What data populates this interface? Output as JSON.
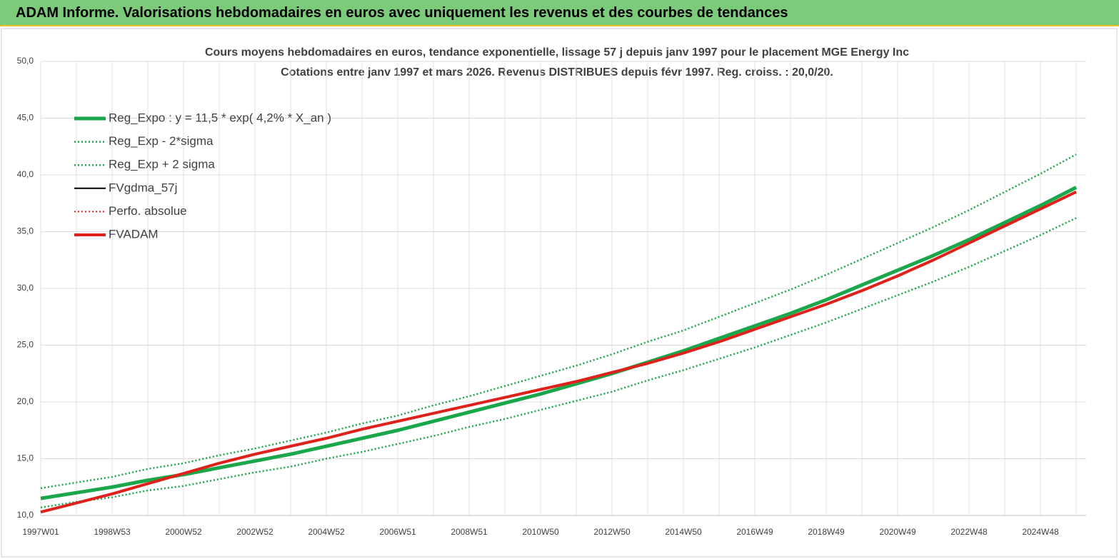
{
  "banner": "ADAM Informe. Valorisations hebdomadaires en euros avec uniquement les revenus et des courbes de tendances",
  "chart_data": {
    "type": "line",
    "title": "Cours moyens hebdomadaires en euros, tendance exponentielle, lissage 57 j depuis janv 1997 pour le placement MGE Energy Inc",
    "subtitle": "Cotations entre janv 1997 et mars 2026. Revenus DISTRIBUES depuis févr 1997. Reg. croiss. : 20,0/20.",
    "categories": [
      "1997W01",
      null,
      "1998W53",
      null,
      "2000W52",
      null,
      "2002W52",
      null,
      "2004W52",
      null,
      "2006W51",
      null,
      "2008W51",
      null,
      "2010W50",
      null,
      "2012W50",
      null,
      "2014W50",
      null,
      "2016W49",
      null,
      "2018W49",
      null,
      "2020W49",
      null,
      "2022W48",
      null,
      "2024W48",
      null
    ],
    "ylim": [
      10,
      50
    ],
    "yticks": [
      {
        "value": 10,
        "label": "10,0"
      },
      {
        "value": 15,
        "label": "15,0"
      },
      {
        "value": 20,
        "label": "20,0"
      },
      {
        "value": 25,
        "label": "25,0"
      },
      {
        "value": 30,
        "label": "30,0"
      },
      {
        "value": 35,
        "label": "35,0"
      },
      {
        "value": 40,
        "label": "40,0"
      },
      {
        "value": 45,
        "label": "45,0"
      },
      {
        "value": 50,
        "label": "50,0"
      }
    ],
    "grid": true,
    "legend": "top-left",
    "series": [
      {
        "name": "Reg_Expo : y = 11,5 * exp( 4,2% *  X_an )",
        "color": "#1aa64a",
        "width": 5,
        "dotted": false,
        "values": [
          11.5,
          12.0,
          12.5,
          13.1,
          13.6,
          14.2,
          14.8,
          15.4,
          16.1,
          16.8,
          17.5,
          18.3,
          19.1,
          19.9,
          20.7,
          21.6,
          22.5,
          23.5,
          24.5,
          25.6,
          26.7,
          27.8,
          29.0,
          30.3,
          31.6,
          32.9,
          34.3,
          35.8,
          37.3,
          38.9
        ]
      },
      {
        "name": "Reg_Exp - 2*sigma",
        "color": "#1aa64a",
        "width": 2.5,
        "dotted": true,
        "values": [
          10.7,
          11.2,
          11.6,
          12.2,
          12.6,
          13.2,
          13.8,
          14.3,
          15.0,
          15.6,
          16.3,
          17.0,
          17.8,
          18.5,
          19.3,
          20.1,
          20.9,
          21.9,
          22.8,
          23.8,
          24.8,
          25.9,
          27.0,
          28.2,
          29.4,
          30.6,
          31.9,
          33.3,
          34.7,
          36.2
        ]
      },
      {
        "name": "Reg_Exp + 2 sigma",
        "color": "#1aa64a",
        "width": 2.5,
        "dotted": true,
        "values": [
          12.4,
          12.9,
          13.4,
          14.1,
          14.6,
          15.3,
          15.9,
          16.6,
          17.3,
          18.1,
          18.8,
          19.7,
          20.5,
          21.4,
          22.3,
          23.2,
          24.2,
          25.3,
          26.3,
          27.5,
          28.7,
          29.9,
          31.2,
          32.6,
          34.0,
          35.4,
          36.9,
          38.5,
          40.1,
          41.8
        ]
      },
      {
        "name": "FVgdma_57j",
        "color": "#000000",
        "width": 2,
        "dotted": false,
        "values": [
          10.3,
          11.1,
          11.9,
          12.8,
          13.7,
          14.6,
          15.4,
          16.1,
          16.8,
          17.6,
          18.3,
          19.0,
          19.7,
          20.4,
          21.1,
          21.8,
          22.6,
          23.4,
          24.3,
          25.3,
          26.4,
          27.5,
          28.6,
          29.8,
          31.1,
          32.5,
          34.0,
          35.5,
          37.0,
          38.5
        ]
      },
      {
        "name": "Perfo. absolue",
        "color": "#e0201b",
        "width": 2,
        "dotted": true,
        "values": [
          10.3,
          11.1,
          11.9,
          12.8,
          13.7,
          14.6,
          15.4,
          16.1,
          16.8,
          17.6,
          18.3,
          19.0,
          19.7,
          20.4,
          21.1,
          21.8,
          22.6,
          23.4,
          24.3,
          25.3,
          26.4,
          27.5,
          28.6,
          29.8,
          31.1,
          32.5,
          34.0,
          35.5,
          37.0,
          38.5
        ]
      },
      {
        "name": "FVADAM",
        "color": "#e0201b",
        "width": 4,
        "dotted": false,
        "values": [
          10.3,
          11.1,
          11.9,
          12.8,
          13.7,
          14.6,
          15.4,
          16.1,
          16.8,
          17.6,
          18.3,
          19.0,
          19.7,
          20.4,
          21.1,
          21.8,
          22.6,
          23.4,
          24.3,
          25.3,
          26.4,
          27.5,
          28.6,
          29.8,
          31.1,
          32.5,
          34.0,
          35.5,
          37.0,
          38.5
        ]
      }
    ]
  }
}
